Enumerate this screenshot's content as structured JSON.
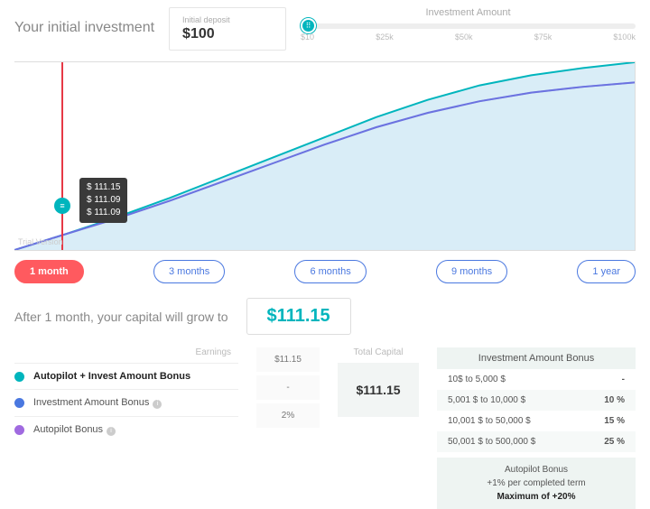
{
  "header": {
    "title": "Your initial investment",
    "deposit_label": "Initial deposit",
    "deposit_value": "$100",
    "slider_title": "Investment Amount",
    "slider_ticks": [
      "$10",
      "$25k",
      "$50k",
      "$75k",
      "$100k"
    ],
    "slider_pos_pct": 0
  },
  "chart": {
    "type": "area",
    "x_range": [
      0,
      12
    ],
    "y_range": [
      100,
      230
    ],
    "background": "#ffffff",
    "area_fill": "#b9dff1",
    "area_opacity": 0.55,
    "series": [
      {
        "name": "autopilot_plus",
        "color": "#00b5bd",
        "width": 2,
        "points": [
          [
            0,
            100
          ],
          [
            1,
            111.15
          ],
          [
            2,
            123
          ],
          [
            3,
            136
          ],
          [
            4,
            150
          ],
          [
            5,
            164
          ],
          [
            6,
            178
          ],
          [
            7,
            192
          ],
          [
            8,
            204
          ],
          [
            9,
            214
          ],
          [
            10,
            221
          ],
          [
            11,
            226
          ],
          [
            12,
            230
          ]
        ]
      },
      {
        "name": "investment_bonus",
        "color": "#4a78e0",
        "width": 2,
        "points": [
          [
            0,
            100
          ],
          [
            1,
            111.09
          ],
          [
            2,
            122
          ],
          [
            3,
            134
          ],
          [
            4,
            147
          ],
          [
            5,
            160
          ],
          [
            6,
            173
          ],
          [
            7,
            185
          ],
          [
            8,
            195
          ],
          [
            9,
            203
          ],
          [
            10,
            209
          ],
          [
            11,
            213
          ],
          [
            12,
            216
          ]
        ]
      },
      {
        "name": "autopilot",
        "color": "#a06ae0",
        "width": 2,
        "points": [
          [
            0,
            100
          ],
          [
            1,
            111.09
          ],
          [
            2,
            122
          ],
          [
            3,
            134
          ],
          [
            4,
            147
          ],
          [
            5,
            160
          ],
          [
            6,
            173
          ],
          [
            7,
            185
          ],
          [
            8,
            195
          ],
          [
            9,
            203
          ],
          [
            10,
            209
          ],
          [
            11,
            213
          ],
          [
            12,
            216
          ]
        ]
      }
    ],
    "marker_x": 1,
    "marker_color": "#e63946",
    "tooltip": [
      "$ 111.15",
      "$ 111.09",
      "$ 111.09"
    ],
    "watermark": "Trial Version"
  },
  "periods": {
    "items": [
      "1 month",
      "3 months",
      "6 months",
      "9 months",
      "1 year"
    ],
    "active_index": 0,
    "active_bg": "#ff5a5f",
    "inactive_color": "#4a78e0"
  },
  "growth": {
    "text": "After 1 month, your capital will grow to",
    "value": "$111.15",
    "value_color": "#00b5bd"
  },
  "legend": {
    "headers": {
      "earnings": "Earnings",
      "total": "Total Capital"
    },
    "rows": [
      {
        "color": "#00b5bd",
        "label": "Autopilot + Invest Amount Bonus",
        "bold": true,
        "earning": "$11.15"
      },
      {
        "color": "#4a78e0",
        "label": "Investment Amount Bonus",
        "bold": false,
        "info": true,
        "earning": "-"
      },
      {
        "color": "#a06ae0",
        "label": "Autopilot Bonus",
        "bold": false,
        "info": true,
        "earning": "2%"
      }
    ],
    "total_capital": "$111.15"
  },
  "bonus_table": {
    "title": "Investment Amount Bonus",
    "rows": [
      {
        "range": "10$ to 5,000 $",
        "pct": "-"
      },
      {
        "range": "5,001 $ to 10,000 $",
        "pct": "10 %"
      },
      {
        "range": "10,001 $ to 50,000 $",
        "pct": "15 %"
      },
      {
        "range": "50,001 $ to 500,000 $",
        "pct": "25 %"
      }
    ]
  },
  "autopilot_box": {
    "title": "Autopilot Bonus",
    "sub": "+1% per completed term",
    "max": "Maximum of +20%"
  }
}
